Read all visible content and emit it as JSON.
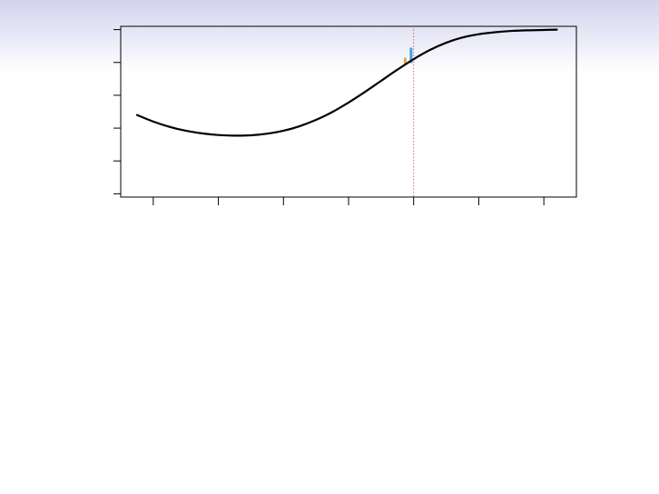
{
  "chart_data": {
    "type": "line",
    "title": "",
    "xlabel": "",
    "ylabel": "",
    "xlim": [
      -0.5,
      6.5
    ],
    "ylim": [
      -0.1,
      5.1
    ],
    "x_ticks": [
      0,
      1,
      2,
      3,
      4,
      5,
      6
    ],
    "y_ticks": [
      0,
      1,
      2,
      3,
      4,
      5
    ],
    "grid": false,
    "line_color": "#000000",
    "vline": {
      "x": 4,
      "color": "#e0607a",
      "style": "dotted"
    },
    "series": [
      {
        "x": [
          -0.25,
          0.0,
          0.25,
          0.5,
          0.75,
          1.0,
          1.25,
          1.5,
          1.75,
          2.0,
          2.25,
          2.5,
          2.75,
          3.0,
          3.25,
          3.5,
          3.75,
          4.0,
          4.25,
          4.5,
          4.75,
          5.0,
          5.25,
          5.5,
          5.75,
          6.0,
          6.2
        ],
        "y": [
          2.4,
          2.2,
          2.04,
          1.92,
          1.84,
          1.79,
          1.77,
          1.78,
          1.83,
          1.92,
          2.06,
          2.25,
          2.49,
          2.78,
          3.1,
          3.44,
          3.78,
          4.1,
          4.38,
          4.6,
          4.76,
          4.86,
          4.92,
          4.96,
          4.98,
          4.99,
          5.0
        ]
      }
    ],
    "markers": [
      {
        "x": 3.87,
        "y0": 3.96,
        "y1": 4.14,
        "color": "#e8a33a"
      },
      {
        "x": 3.96,
        "y0": 3.98,
        "y1": 4.45,
        "color": "#3aa6dd"
      }
    ]
  }
}
